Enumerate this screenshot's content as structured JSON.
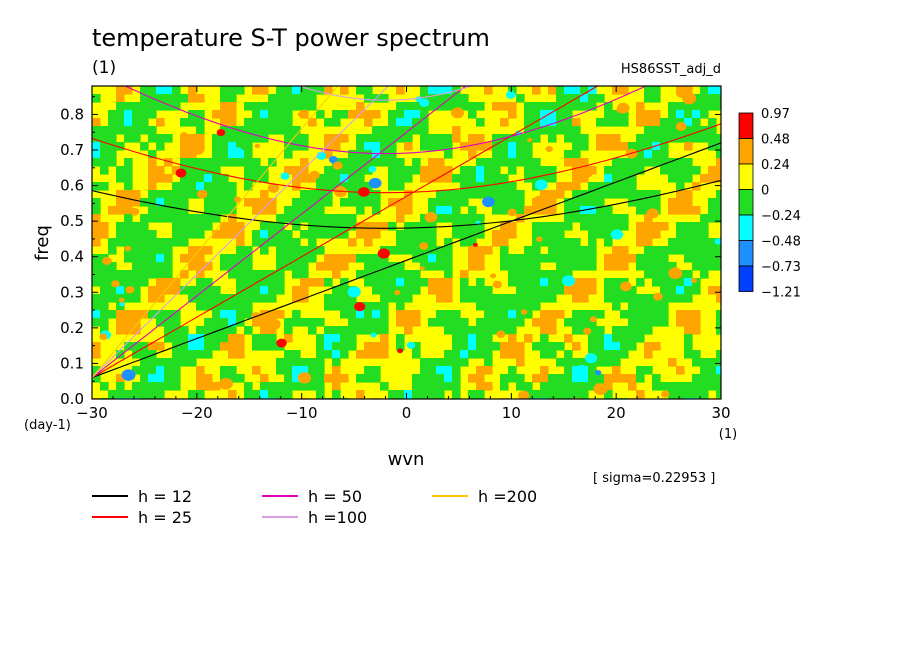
{
  "chart_data": {
    "type": "heatmap",
    "title": "temperature S-T power spectrum",
    "subtitle_left": "(1)",
    "subtitle_right": "HS86SST_adj_d",
    "xlabel": "wvn",
    "xunit": "(1)",
    "ylabel": "freq",
    "yunit": "(day-1)",
    "xlim": [
      -30,
      30
    ],
    "ylim": [
      0,
      0.88
    ],
    "xticks": [
      -30,
      -20,
      -10,
      0,
      10,
      20,
      30
    ],
    "yticks": [
      0.0,
      0.1,
      0.2,
      0.3,
      0.4,
      0.5,
      0.6,
      0.7,
      0.8
    ],
    "sigma_note": "[ sigma=0.22953 ]",
    "colorbar": {
      "labels": [
        "0.97",
        "0.48",
        "0.24",
        "0",
        "-0.24",
        "-0.48",
        "-0.73",
        "-1.21"
      ],
      "colors": [
        "#ff0000",
        "#ffa500",
        "#ffff00",
        "#22dd22",
        "#00ffff",
        "#1e90ff",
        "#0040ff"
      ],
      "dominant_colors": [
        "#ffff00",
        "#22dd22"
      ]
    },
    "dispersion_curves": [
      {
        "label": "h = 12",
        "color": "#000000"
      },
      {
        "label": "h = 25",
        "color": "#ff0000"
      },
      {
        "label": "h = 50",
        "color": "#e000c0"
      },
      {
        "label": "h =100",
        "color": "#d8a0e0"
      },
      {
        "label": "h =200",
        "color": "#ffc800"
      }
    ],
    "grid": false,
    "legend_position": "bottom-left"
  }
}
